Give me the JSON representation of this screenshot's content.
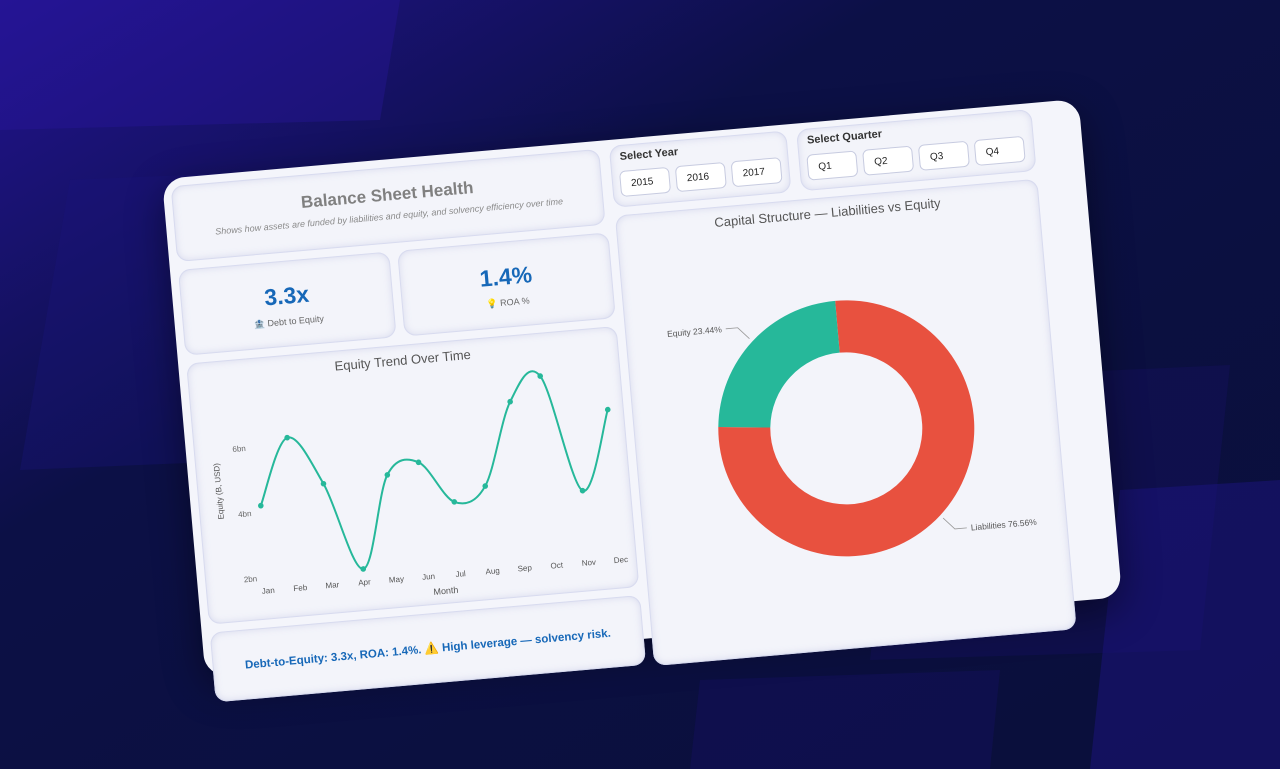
{
  "header": {
    "title": "Balance Sheet Health",
    "subtitle": "Shows how assets are funded by liabilities and equity, and solvency efficiency over time"
  },
  "year_slicer": {
    "title": "Select Year",
    "options": [
      "2015",
      "2016",
      "2017"
    ]
  },
  "quarter_slicer": {
    "title": "Select Quarter",
    "options": [
      "Q1",
      "Q2",
      "Q3",
      "Q4"
    ]
  },
  "kpis": {
    "debt_to_equity": {
      "value": "3.3x",
      "label": "🏦 Debt to Equity"
    },
    "roa": {
      "value": "1.4%",
      "label": "💡 ROA %"
    }
  },
  "insight": {
    "text": "Debt-to-Equity: 3.3x, ROA: 1.4%. ⚠️ High leverage — solvency risk."
  },
  "colors": {
    "accent": "#1768b8",
    "equity": "#26b89a",
    "liabilities": "#e8513f"
  },
  "chart_data": [
    {
      "type": "line",
      "title": "Equity Trend Over Time",
      "xlabel": "Month",
      "ylabel": "Equity (B, USD)",
      "x": [
        "Jan",
        "Feb",
        "Mar",
        "Apr",
        "May",
        "Jun",
        "Jul",
        "Aug",
        "Sep",
        "Oct",
        "Nov",
        "Dec"
      ],
      "series": [
        {
          "values": [
            4.2,
            6.2,
            4.7,
            2.0,
            4.8,
            5.1,
            3.8,
            4.2,
            6.7,
            7.4,
            3.8,
            6.2
          ]
        }
      ],
      "yticks": [
        "2bn",
        "4bn",
        "6bn"
      ],
      "ylim": [
        2,
        7.5
      ],
      "grid": false
    },
    {
      "type": "pie",
      "title": "Capital Structure — Liabilities vs Equity",
      "categories": [
        "Liabilities",
        "Equity"
      ],
      "values": [
        76.56,
        23.44
      ],
      "labels": [
        "Liabilities 76.56%",
        "Equity 23.44%"
      ],
      "donut": true
    }
  ]
}
